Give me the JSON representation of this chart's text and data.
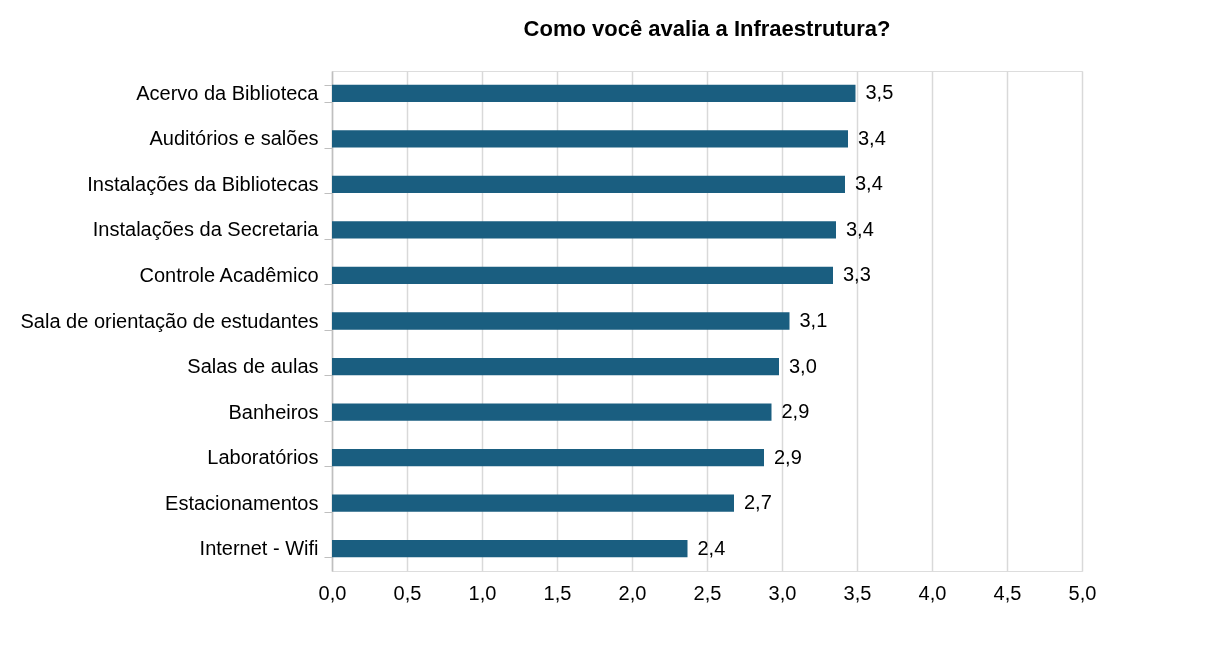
{
  "chart_data": {
    "type": "bar",
    "orientation": "horizontal",
    "title": "Como você avalia a Infraestrutura?",
    "categories": [
      "Acervo da Biblioteca",
      "Auditórios e salões",
      "Instalações da Bibliotecas",
      "Instalações da Secretaria",
      "Controle Acadêmico",
      "Sala de orientação de estudantes",
      "Salas de aulas",
      "Banheiros",
      "Laboratórios",
      "Estacionamentos",
      "Internet - Wifi"
    ],
    "values": [
      3.49,
      3.44,
      3.42,
      3.36,
      3.34,
      3.05,
      2.98,
      2.93,
      2.88,
      2.68,
      2.37
    ],
    "value_labels": [
      "3,5",
      "3,4",
      "3,4",
      "3,4",
      "3,3",
      "3,1",
      "3,0",
      "2,9",
      "2,9",
      "2,7",
      "2,4"
    ],
    "color": "#1a5e80",
    "xlim": [
      0,
      5
    ],
    "xticks": [
      {
        "value": 0,
        "label": "0,0"
      },
      {
        "value": 0.5,
        "label": "0,5"
      },
      {
        "value": 1,
        "label": "1,0"
      },
      {
        "value": 1.5,
        "label": "1,5"
      },
      {
        "value": 2,
        "label": "2,0"
      },
      {
        "value": 2.5,
        "label": "2,5"
      },
      {
        "value": 3,
        "label": "3,0"
      },
      {
        "value": 3.5,
        "label": "3,5"
      },
      {
        "value": 4,
        "label": "4,0"
      },
      {
        "value": 4.5,
        "label": "4,5"
      },
      {
        "value": 5,
        "label": "5,0"
      }
    ],
    "grid": "x"
  }
}
